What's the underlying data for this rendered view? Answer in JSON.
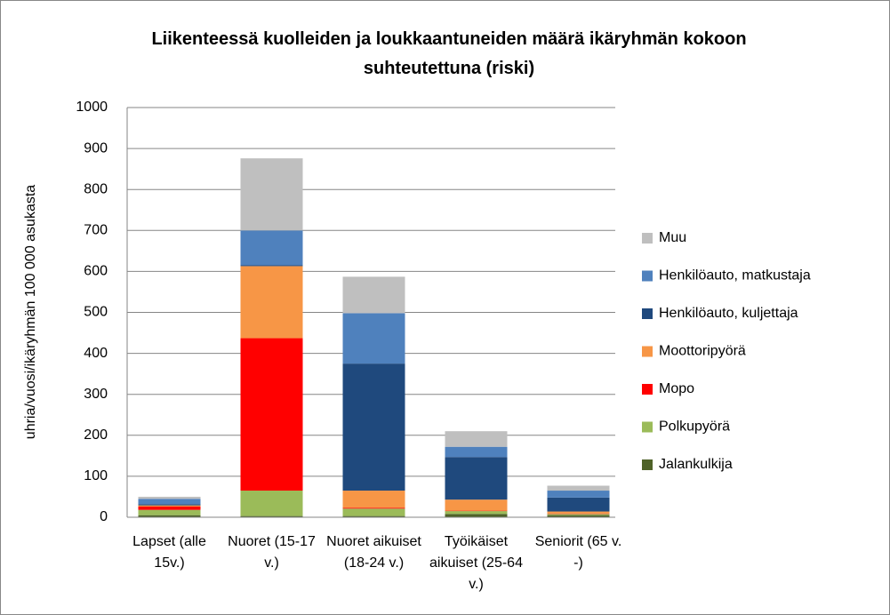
{
  "chart_data": {
    "type": "bar",
    "stacked": true,
    "title": "Liikenteessä kuolleiden ja loukkaantuneiden määrä ikäryhmän kokoon suhteutettuna (riski)",
    "ylabel": "uhria/vuosi/ikäryhmän 100 000 asukasta",
    "categories": [
      "Lapset (alle 15v.)",
      "Nuoret (15-17 v.)",
      "Nuoret aikuiset (18-24 v.)",
      "Työikäiset aikuiset (25-64 v.)",
      "Seniorit (65 v. -)"
    ],
    "series": [
      {
        "name": "Jalankulkija",
        "color": "#4f6228",
        "values": [
          5,
          3,
          3,
          8,
          5
        ]
      },
      {
        "name": "Polkupyörä",
        "color": "#9bbb59",
        "values": [
          13,
          62,
          18,
          7,
          3
        ]
      },
      {
        "name": "Mopo",
        "color": "#ff0000",
        "values": [
          8,
          372,
          2,
          1,
          1
        ]
      },
      {
        "name": "Moottoripyörä",
        "color": "#f79646",
        "values": [
          3,
          176,
          42,
          27,
          5
        ]
      },
      {
        "name": "Henkilöauto, kuljettaja",
        "color": "#1f497d",
        "values": [
          3,
          2,
          310,
          104,
          34
        ]
      },
      {
        "name": "Henkilöauto, matkustaja",
        "color": "#4f81bd",
        "values": [
          13,
          85,
          123,
          25,
          17
        ]
      },
      {
        "name": "Muu",
        "color": "#bfbfbf",
        "values": [
          5,
          176,
          89,
          38,
          12
        ]
      }
    ],
    "ylim": [
      0,
      1000
    ],
    "yticks": [
      0,
      100,
      200,
      300,
      400,
      500,
      600,
      700,
      800,
      900,
      1000
    ],
    "grid": true,
    "legend": "right"
  }
}
